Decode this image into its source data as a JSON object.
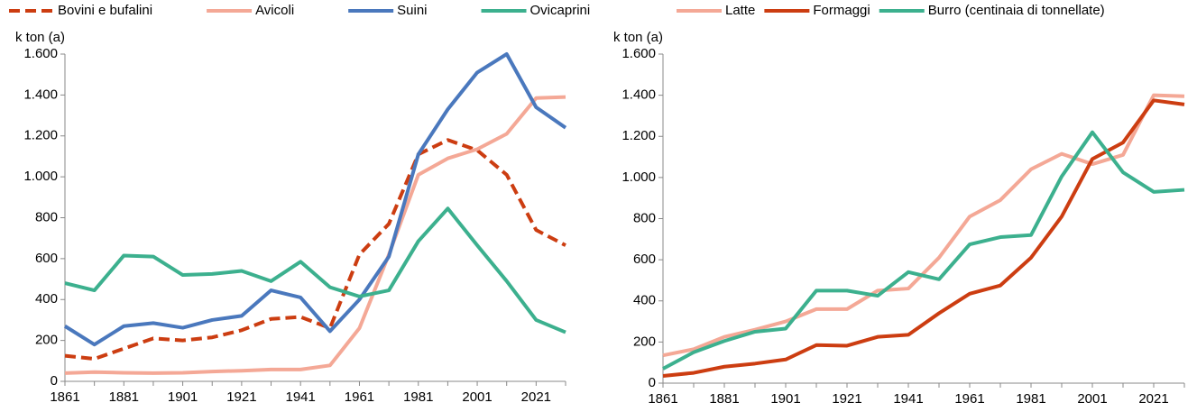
{
  "chart_data": [
    {
      "type": "line",
      "y_label": "k ton (a)",
      "categories": [
        "1861",
        null,
        "1881",
        null,
        "1901",
        null,
        "1921",
        null,
        "1941",
        null,
        "1961",
        null,
        "1981",
        null,
        "2001",
        null,
        "2021",
        null
      ],
      "ylim": [
        0,
        1600
      ],
      "yticks": [
        0,
        200,
        400,
        600,
        800,
        {
          "value": 1000,
          "label": "1.000"
        },
        {
          "value": 1200,
          "label": "1.200"
        },
        {
          "value": 1400,
          "label": "1.400"
        },
        {
          "value": 1600,
          "label": "1.600"
        }
      ],
      "grid": false,
      "series": [
        {
          "name": "Bovini e bufalini",
          "color": "#cc3d11",
          "dashed": true,
          "values": [
            125,
            110,
            160,
            210,
            200,
            215,
            250,
            305,
            315,
            260,
            620,
            770,
            1110,
            1180,
            1130,
            1010,
            740,
            665
          ]
        },
        {
          "name": "Avicoli",
          "color": "#f4a896",
          "values": [
            40,
            45,
            42,
            40,
            42,
            48,
            52,
            58,
            58,
            78,
            260,
            620,
            1010,
            1090,
            1135,
            1210,
            1385,
            1390
          ]
        },
        {
          "name": "Suini",
          "color": "#4a78bd",
          "values": [
            270,
            180,
            270,
            285,
            262,
            300,
            320,
            445,
            410,
            245,
            400,
            610,
            1110,
            1330,
            1510,
            1600,
            1340,
            1240
          ]
        },
        {
          "name": "Ovicaprini",
          "color": "#3cb08e",
          "values": [
            480,
            445,
            615,
            610,
            520,
            525,
            540,
            490,
            585,
            460,
            415,
            445,
            685,
            845,
            665,
            490,
            300,
            240
          ]
        }
      ]
    },
    {
      "type": "line",
      "y_label": "k ton (a)",
      "categories": [
        "1861",
        null,
        "1881",
        null,
        "1901",
        null,
        "1921",
        null,
        "1941",
        null,
        "1961",
        null,
        "1981",
        null,
        "2001",
        null,
        "2021",
        null
      ],
      "ylim": [
        0,
        1600
      ],
      "yticks": [
        0,
        200,
        400,
        600,
        800,
        {
          "value": 1000,
          "label": "1.000"
        },
        {
          "value": 1200,
          "label": "1.200"
        },
        {
          "value": 1400,
          "label": "1.400"
        },
        {
          "value": 1600,
          "label": "1.600"
        }
      ],
      "grid": false,
      "series": [
        {
          "name": "Latte",
          "color": "#f4a896",
          "values": [
            135,
            165,
            225,
            260,
            300,
            360,
            360,
            450,
            460,
            610,
            810,
            890,
            1040,
            1115,
            1065,
            1110,
            1400,
            1395
          ]
        },
        {
          "name": "Formaggi",
          "color": "#cc3d11",
          "values": [
            35,
            50,
            80,
            95,
            115,
            185,
            182,
            225,
            235,
            340,
            435,
            475,
            610,
            810,
            1090,
            1170,
            1375,
            1355
          ]
        },
        {
          "name": "Burro (centinaia di tonnellate)",
          "color": "#3cb08e",
          "values": [
            70,
            150,
            205,
            250,
            265,
            450,
            450,
            425,
            540,
            505,
            675,
            710,
            720,
            1005,
            1220,
            1025,
            930,
            940
          ]
        }
      ]
    }
  ]
}
